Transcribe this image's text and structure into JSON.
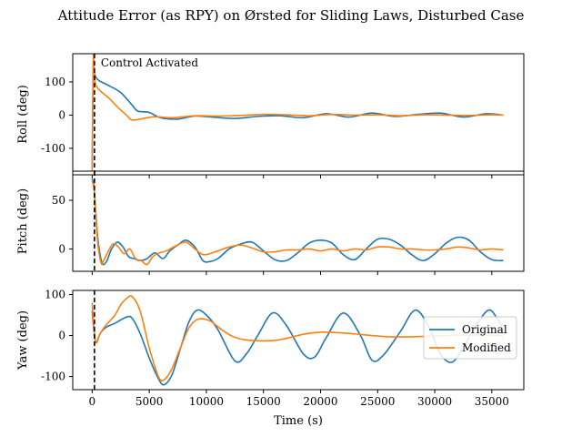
{
  "chart_data": {
    "type": "line",
    "title": "Attitude Error (as RPY) on Ørsted for Sliding Laws, Disturbed Case",
    "xlabel": "Time (s)",
    "xlim": [
      -1700,
      37800
    ],
    "xticks": [
      0,
      5000,
      10000,
      15000,
      20000,
      25000,
      30000,
      35000
    ],
    "xtick_labels": [
      "0",
      "5000",
      "10000",
      "15000",
      "20000",
      "25000",
      "30000",
      "35000"
    ],
    "colors": {
      "Original": "#1f77b4",
      "Modified": "#ff7f0e"
    },
    "legend": {
      "placement": "center right",
      "entries": [
        "Original",
        "Modified"
      ]
    },
    "activation": {
      "x": 200,
      "label": "Control Activated"
    },
    "panels": [
      {
        "ylabel": "Roll (deg)",
        "ylim": [
          -180,
          185
        ],
        "yticks": [
          -100,
          0,
          100
        ],
        "series": [
          {
            "name": "Original",
            "x": [
              0,
              100,
              200,
              400,
              800,
              1500,
              2500,
              3500,
              4000,
              5000,
              6000,
              7500,
              9000,
              10500,
              12500,
              14500,
              16500,
              18500,
              20500,
              22500,
              24500,
              26500,
              28500,
              30500,
              32500,
              34500,
              36000
            ],
            "y": [
              -160,
              150,
              125,
              110,
              100,
              88,
              68,
              30,
              12,
              8,
              -8,
              -12,
              -3,
              -6,
              -10,
              -4,
              -2,
              -8,
              4,
              -6,
              6,
              -4,
              2,
              6,
              -6,
              4,
              0
            ]
          },
          {
            "name": "Modified",
            "x": [
              0,
              100,
              200,
              400,
              800,
              1500,
              2200,
              3000,
              3500,
              4500,
              5500,
              7000,
              9000,
              11000,
              13000,
              15000,
              17000,
              19000,
              21000,
              23000,
              25000,
              27000,
              29000,
              31000,
              33000,
              35000,
              36000
            ],
            "y": [
              -170,
              170,
              110,
              85,
              70,
              50,
              25,
              0,
              -15,
              -10,
              -5,
              -8,
              -2,
              -3,
              -1,
              2,
              1,
              -2,
              2,
              0,
              1,
              -2,
              1,
              0,
              -1,
              1,
              0
            ]
          }
        ]
      },
      {
        "ylabel": "Pitch (deg)",
        "ylim": [
          -23,
          80
        ],
        "yticks": [
          0,
          50
        ],
        "series": [
          {
            "name": "Original",
            "x": [
              0,
              150,
              300,
              500,
              800,
              1000,
              1300,
              1700,
              2200,
              2700,
              3200,
              3700,
              4200,
              4800,
              5500,
              6200,
              6800,
              7500,
              8200,
              9000,
              9700,
              10300,
              11000,
              12000,
              13000,
              14000,
              15000,
              16000,
              17000,
              18000,
              19000,
              20000,
              21000,
              22000,
              23000,
              24000,
              25000,
              26000,
              27000,
              28000,
              29000,
              30000,
              31000,
              32000,
              33000,
              34000,
              35000,
              36000
            ],
            "y": [
              72,
              65,
              40,
              10,
              -12,
              -16,
              -12,
              0,
              7,
              2,
              -8,
              -10,
              -12,
              -10,
              -4,
              -10,
              -2,
              4,
              9,
              2,
              -12,
              -13,
              -10,
              0,
              5,
              7,
              -2,
              -11,
              -12,
              -4,
              6,
              9,
              6,
              -6,
              -11,
              0,
              10,
              10,
              4,
              -6,
              -12,
              -5,
              6,
              12,
              9,
              -3,
              -11,
              -12
            ]
          },
          {
            "name": "Modified",
            "x": [
              0,
              150,
              300,
              500,
              800,
              1000,
              1300,
              1800,
              2300,
              2800,
              3300,
              3800,
              4300,
              4800,
              5300,
              5900,
              6500,
              7300,
              8200,
              9000,
              9800,
              11000,
              12000,
              13000,
              14000,
              15000,
              16000,
              17000,
              18000,
              19000,
              20000,
              21000,
              22000,
              23000,
              24000,
              25000,
              26000,
              27000,
              28000,
              29000,
              30000,
              31000,
              32000,
              33000,
              34000,
              35000,
              36000
            ],
            "y": [
              70,
              62,
              38,
              5,
              -15,
              -12,
              -5,
              5,
              2,
              -5,
              0,
              -10,
              -12,
              -16,
              -8,
              -4,
              -2,
              3,
              7,
              0,
              -6,
              -2,
              2,
              4,
              1,
              -3,
              -3,
              -1,
              -1,
              0,
              -2,
              0,
              -2,
              0,
              -1,
              2,
              2,
              0,
              0,
              -1,
              -1,
              0,
              2,
              1,
              -1,
              0,
              -1
            ]
          }
        ]
      },
      {
        "ylabel": "Yaw (deg)",
        "ylim": [
          -132,
          110
        ],
        "yticks": [
          -100,
          0,
          100
        ],
        "series": [
          {
            "name": "Original",
            "x": [
              0,
              300,
              700,
              1200,
              2000,
              3000,
              3500,
              4200,
              5000,
              5800,
              6300,
              7000,
              7800,
              8500,
              9200,
              10000,
              11000,
              12500,
              13500,
              14500,
              15800,
              17000,
              18500,
              19500,
              20500,
              22000,
              23500,
              24500,
              25500,
              27000,
              28300,
              29500,
              30500,
              31500,
              32500,
              33500,
              34700,
              35500,
              36000
            ],
            "y": [
              60,
              -15,
              5,
              20,
              30,
              45,
              42,
              5,
              -55,
              -105,
              -120,
              -95,
              -25,
              35,
              62,
              50,
              15,
              -62,
              -45,
              0,
              55,
              25,
              -45,
              -52,
              -5,
              55,
              0,
              -60,
              -48,
              10,
              62,
              20,
              -45,
              -65,
              -30,
              20,
              62,
              40,
              15
            ]
          },
          {
            "name": "Modified",
            "x": [
              0,
              300,
              700,
              1200,
              2000,
              2500,
              3000,
              3500,
              4200,
              5000,
              5800,
              6300,
              7000,
              7800,
              8500,
              9300,
              10300,
              11300,
              12300,
              13300,
              15000,
              16500,
              18500,
              20000,
              21500,
              23000,
              24500,
              26000,
              28000,
              30000,
              32000,
              34000,
              36000
            ],
            "y": [
              80,
              -15,
              5,
              25,
              50,
              75,
              90,
              95,
              60,
              -30,
              -100,
              -108,
              -80,
              -25,
              20,
              40,
              36,
              15,
              -2,
              -10,
              -13,
              -10,
              3,
              8,
              7,
              4,
              0,
              -3,
              -3,
              -1,
              1,
              1,
              0
            ]
          }
        ]
      }
    ]
  }
}
